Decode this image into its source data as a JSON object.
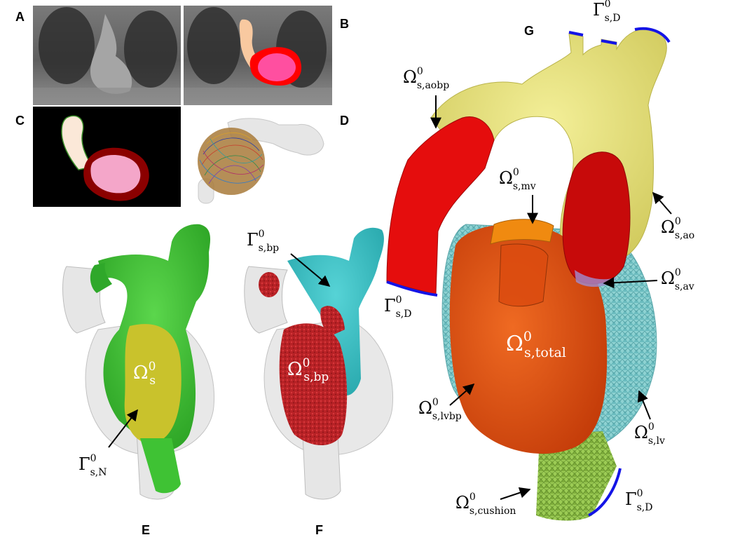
{
  "panels": {
    "A": "A",
    "B": "B",
    "C": "C",
    "D": "D",
    "E": "E",
    "F": "F",
    "G": "G"
  },
  "labels": {
    "omega_s": {
      "main": "Ω",
      "sup": "0",
      "sub": "s"
    },
    "gamma_sN": {
      "main": "Γ",
      "sup": "0",
      "sub": "s,N"
    },
    "gamma_sbp": {
      "main": "Γ",
      "sup": "0",
      "sub": "s,bp"
    },
    "omega_sbp": {
      "main": "Ω",
      "sup": "0",
      "sub": "s,bp"
    },
    "gamma_sD_top": {
      "main": "Γ",
      "sup": "0",
      "sub": "s,D"
    },
    "omega_saobp": {
      "main": "Ω",
      "sup": "0",
      "sub": "s,aobp"
    },
    "omega_smv": {
      "main": "Ω",
      "sup": "0",
      "sub": "s,mv"
    },
    "omega_sao": {
      "main": "Ω",
      "sup": "0",
      "sub": "s,ao"
    },
    "omega_sav": {
      "main": "Ω",
      "sup": "0",
      "sub": "s,av"
    },
    "gamma_sD_left": {
      "main": "Γ",
      "sup": "0",
      "sub": "s,D"
    },
    "omega_stotal": {
      "main": "Ω",
      "sup": "0",
      "sub": "s,total"
    },
    "omega_slvbp": {
      "main": "Ω",
      "sup": "0",
      "sub": "s,lvbp"
    },
    "omega_slv": {
      "main": "Ω",
      "sup": "0",
      "sub": "s,lv"
    },
    "omega_scushion": {
      "main": "Ω",
      "sup": "0",
      "sub": "s,cushion"
    },
    "gamma_sD_bottom": {
      "main": "Γ",
      "sup": "0",
      "sub": "s,D"
    }
  },
  "colors": {
    "mri_gray": "#6e6e6e",
    "aorta_seg": "#f8c9a0",
    "lv_blood": "#ff4fa0",
    "lv_wall": "#ff0000",
    "mask_aorta": "#fbe8d8",
    "mask_lv": "#f4a6c9",
    "mask_wall": "#8b0000",
    "green_shell": "#3fc234",
    "yellow_cavity": "#c9c22c",
    "cyan_shell": "#36c0c4",
    "red_bp": "#c0262c",
    "aorta_yellow": "#eae57a",
    "aobp_red": "#e50d0d",
    "lv_orange": "#e35012",
    "mv_orange": "#f08a10",
    "lv_teal": "#8ed2d2",
    "cushion_green": "#9ccc55",
    "dirichlet_blue": "#1414e6",
    "ghost_gray": "#e6e6e6"
  }
}
